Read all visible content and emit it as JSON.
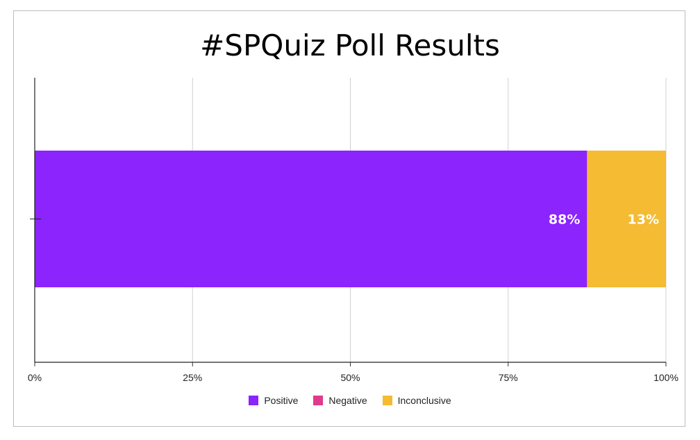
{
  "chart_data": {
    "type": "bar",
    "orientation": "horizontal",
    "stacked": true,
    "title": "#SPQuiz Poll Results",
    "xlabel": "",
    "ylabel": "",
    "xlim": [
      0,
      100
    ],
    "x_ticks": [
      "0%",
      "25%",
      "50%",
      "75%",
      "100%"
    ],
    "categories": [
      ""
    ],
    "series": [
      {
        "name": "Positive",
        "values": [
          87.5
        ],
        "label": "88%",
        "color": "#8b24fd"
      },
      {
        "name": "Negative",
        "values": [
          0
        ],
        "label": "",
        "color": "#e03a8c"
      },
      {
        "name": "Inconclusive",
        "values": [
          12.5
        ],
        "label": "13%",
        "color": "#f4bb33"
      }
    ],
    "legend_position": "bottom",
    "grid": true
  }
}
